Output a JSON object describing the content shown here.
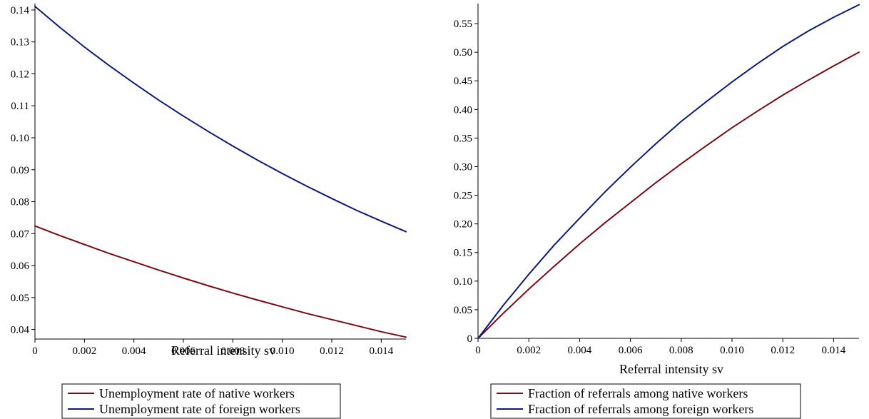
{
  "chart_data": [
    {
      "type": "line",
      "title": "",
      "xlabel": "Referral intensity sv",
      "ylabel": "",
      "xlim": [
        0,
        0.015
      ],
      "ylim": [
        0.037,
        0.142
      ],
      "xticks": [
        "0",
        "0.002",
        "0.004",
        "0.006",
        "0.008",
        "0.010",
        "0.012",
        "0.014"
      ],
      "xtick_values": [
        0,
        0.002,
        0.004,
        0.006,
        0.008,
        0.01,
        0.012,
        0.014
      ],
      "yticks": [
        "0.04",
        "0.05",
        "0.06",
        "0.07",
        "0.08",
        "0.09",
        "0.10",
        "0.11",
        "0.12",
        "0.13",
        "0.14"
      ],
      "ytick_values": [
        0.04,
        0.05,
        0.06,
        0.07,
        0.08,
        0.09,
        0.1,
        0.11,
        0.12,
        0.13,
        0.14
      ],
      "grid": false,
      "legend_position": "bottom",
      "x": [
        0,
        0.001,
        0.002,
        0.003,
        0.004,
        0.005,
        0.006,
        0.007,
        0.008,
        0.009,
        0.01,
        0.011,
        0.012,
        0.013,
        0.014,
        0.015
      ],
      "series": [
        {
          "name": "Unemployment rate of native workers",
          "color": "#7b0a14",
          "values": [
            0.0724,
            0.0694,
            0.0666,
            0.0638,
            0.0612,
            0.0586,
            0.0561,
            0.0537,
            0.0514,
            0.0492,
            0.0471,
            0.045,
            0.0431,
            0.0412,
            0.0393,
            0.0376
          ]
        },
        {
          "name": "Unemployment rate of foreign workers",
          "color": "#0c1a7a",
          "values": [
            0.1411,
            0.1346,
            0.1284,
            0.1226,
            0.1171,
            0.1118,
            0.1068,
            0.102,
            0.0974,
            0.093,
            0.0888,
            0.0848,
            0.081,
            0.0773,
            0.0739,
            0.0706
          ]
        }
      ]
    },
    {
      "type": "line",
      "title": "",
      "xlabel": "Referral intensity sv",
      "ylabel": "",
      "xlim": [
        0,
        0.015
      ],
      "ylim": [
        0,
        0.585
      ],
      "xticks": [
        "0",
        "0.002",
        "0.004",
        "0.006",
        "0.008",
        "0.010",
        "0.012",
        "0.014"
      ],
      "xtick_values": [
        0,
        0.002,
        0.004,
        0.006,
        0.008,
        0.01,
        0.012,
        0.014
      ],
      "yticks": [
        "0",
        "0.05",
        "0.10",
        "0.15",
        "0.20",
        "0.25",
        "0.30",
        "0.35",
        "0.40",
        "0.45",
        "0.50",
        "0.55"
      ],
      "ytick_values": [
        0,
        0.05,
        0.1,
        0.15,
        0.2,
        0.25,
        0.3,
        0.35,
        0.4,
        0.45,
        0.5,
        0.55
      ],
      "grid": false,
      "legend_position": "bottom",
      "x": [
        0,
        0.001,
        0.002,
        0.003,
        0.004,
        0.005,
        0.006,
        0.007,
        0.008,
        0.009,
        0.01,
        0.011,
        0.012,
        0.013,
        0.014,
        0.015
      ],
      "series": [
        {
          "name": "Fraction of referrals among native workers",
          "color": "#7b0a14",
          "values": [
            0,
            0.044,
            0.086,
            0.126,
            0.165,
            0.202,
            0.237,
            0.272,
            0.305,
            0.337,
            0.368,
            0.397,
            0.425,
            0.451,
            0.476,
            0.5
          ]
        },
        {
          "name": "Fraction of referrals among foreign workers",
          "color": "#0c1a7a",
          "values": [
            0,
            0.058,
            0.112,
            0.163,
            0.21,
            0.256,
            0.299,
            0.34,
            0.379,
            0.414,
            0.448,
            0.48,
            0.51,
            0.537,
            0.561,
            0.583
          ]
        }
      ]
    }
  ]
}
